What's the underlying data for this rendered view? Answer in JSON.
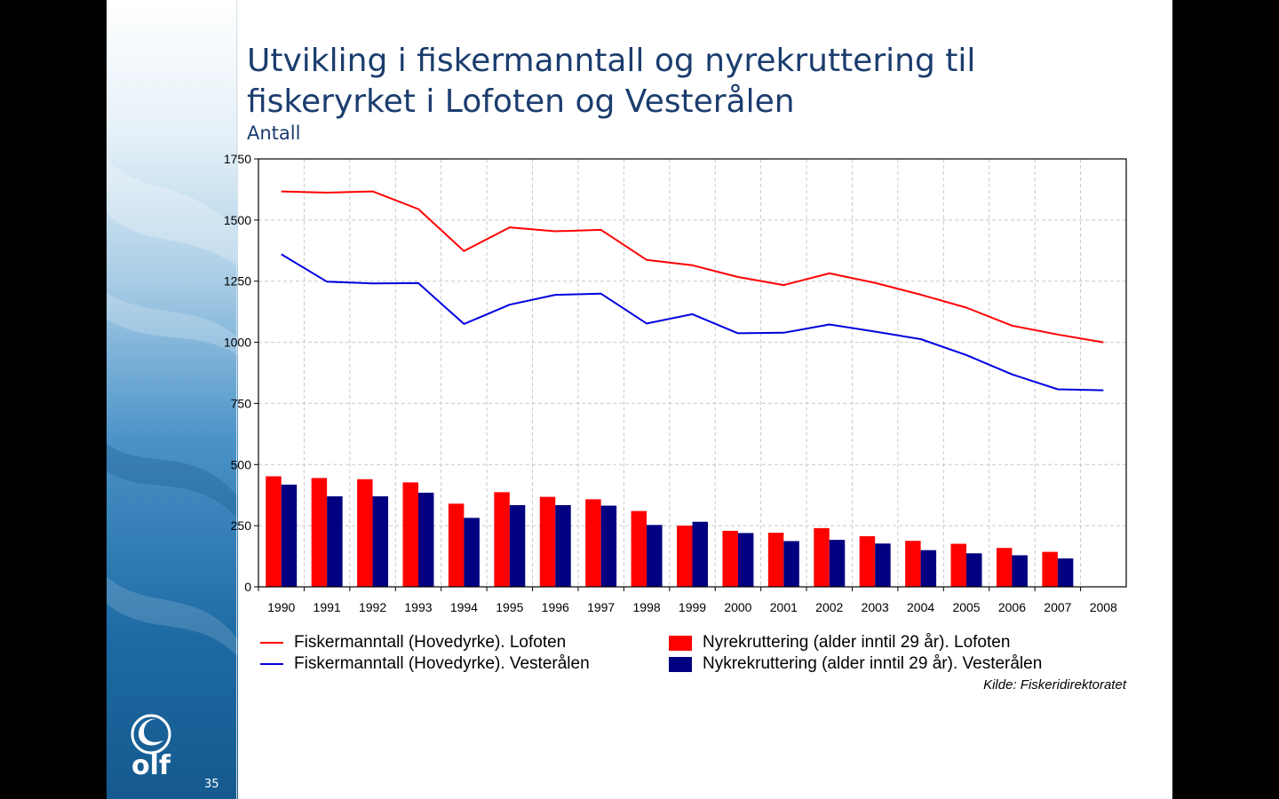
{
  "slide": {
    "title_line1": "Utvikling i fiskermanntall og nyrekruttering til",
    "title_line2": "fiskeryrket i Lofoten og Vesterålen",
    "subtitle": "Antall",
    "source": "Kilde: Fiskeridirektoratet",
    "page_number": "35",
    "logo_text": "olf",
    "colors": {
      "title": "#1b3d6e",
      "sea": "#1a6fa8"
    }
  },
  "chart_data": {
    "type": "bar",
    "categories": [
      "1990",
      "1991",
      "1992",
      "1993",
      "1994",
      "1995",
      "1996",
      "1997",
      "1998",
      "1999",
      "2000",
      "2001",
      "2002",
      "2003",
      "2004",
      "2005",
      "2006",
      "2007",
      "2008"
    ],
    "ylim": [
      0,
      1750
    ],
    "yticks": [
      0,
      250,
      500,
      750,
      1000,
      1250,
      1500,
      1750
    ],
    "grid": true,
    "legend_position": "bottom",
    "bar_series": [
      {
        "name": "Nyrekruttering (alder inntil 29 år). Lofoten",
        "color": "#ff0000",
        "values": [
          452,
          445,
          440,
          427,
          340,
          387,
          368,
          358,
          310,
          250,
          229,
          221,
          240,
          207,
          188,
          176,
          159,
          143,
          null
        ]
      },
      {
        "name": "Nykrekruttering (alder inntil 29 år). Vesterålen",
        "color": "#000080",
        "values": [
          418,
          370,
          370,
          385,
          282,
          334,
          334,
          332,
          253,
          266,
          220,
          187,
          192,
          177,
          150,
          137,
          129,
          116,
          null
        ]
      }
    ],
    "line_series": [
      {
        "name": "Fiskermanntall (Hovedyrke). Lofoten",
        "color": "#ff0000",
        "values": [
          1617,
          1612,
          1617,
          1545,
          1373,
          1470,
          1454,
          1460,
          1337,
          1315,
          1267,
          1234,
          1282,
          1243,
          1195,
          1142,
          1068,
          1032,
          1000
        ]
      },
      {
        "name": "Fiskermanntall (Hovedyrke). Vesterålen",
        "color": "#0000e0",
        "values": [
          1360,
          1248,
          1241,
          1242,
          1075,
          1154,
          1194,
          1199,
          1077,
          1115,
          1037,
          1039,
          1073,
          1044,
          1013,
          948,
          869,
          808,
          804
        ]
      }
    ]
  }
}
